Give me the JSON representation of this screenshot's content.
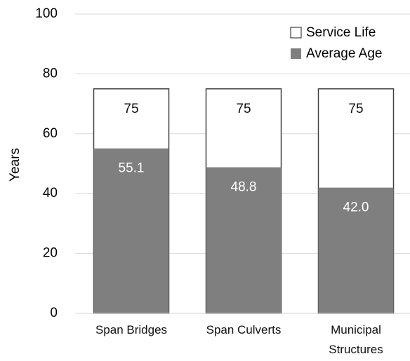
{
  "chart_data": {
    "type": "bar",
    "overlap": true,
    "categories": [
      "Span Bridges",
      "Span Culverts",
      "Municipal Structures"
    ],
    "series": [
      {
        "name": "Service Life",
        "color": "#ffffff",
        "values": [
          75,
          75,
          75
        ]
      },
      {
        "name": "Average Age",
        "color": "#7f7f7f",
        "values": [
          55.1,
          48.8,
          42
        ],
        "value_labels": [
          "55.1",
          "48.8",
          "42.0"
        ]
      }
    ],
    "ylabel": "Years",
    "ylim": [
      0,
      100
    ],
    "yticks": [
      0,
      20,
      40,
      60,
      80,
      100
    ],
    "grid": true,
    "legend": "upper right"
  }
}
